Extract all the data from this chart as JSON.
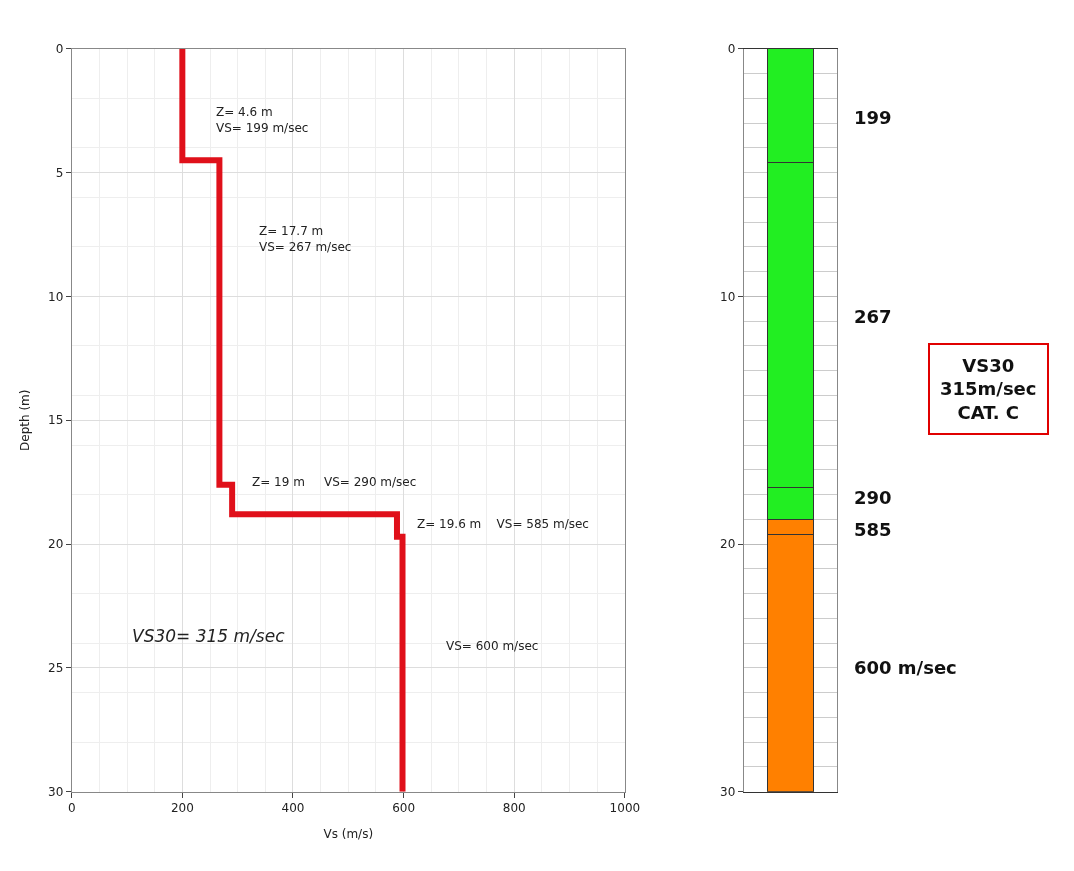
{
  "chart_data": [
    {
      "type": "line",
      "xlabel": "Vs (m/s)",
      "ylabel": "Depth (m)",
      "x": [
        200,
        200,
        267,
        267,
        290,
        290,
        588,
        588,
        598,
        598
      ],
      "series": [
        {
          "color": "#e0101a",
          "values": [
            0,
            4.5,
            4.5,
            17.6,
            17.6,
            18.8,
            18.8,
            19.7,
            19.7,
            30
          ]
        }
      ],
      "xlim": [
        0,
        1000
      ],
      "xticks": [
        0,
        200,
        400,
        600,
        800,
        1000
      ],
      "ylim": [
        30,
        0
      ],
      "yticks": [
        0,
        5,
        10,
        15,
        20,
        25,
        30
      ],
      "grid": true,
      "annotations": [
        "Z= 4.6 m\nVS= 199 m/sec",
        "Z= 17.7 m\nVS= 267 m/sec",
        "Z= 19 m     VS= 290 m/sec",
        "Z= 19.6 m    VS= 585 m/sec",
        "VS= 600 m/sec",
        "VS30= 315 m/sec"
      ]
    },
    {
      "type": "bar",
      "stacked": true,
      "categories": [
        null
      ],
      "series": [
        {
          "color": "#22ee22",
          "values": [
            4.6
          ]
        },
        {
          "color": "#22ee22",
          "values": [
            13.1
          ]
        },
        {
          "color": "#22ee22",
          "values": [
            1.3
          ]
        },
        {
          "color": "#ff8000",
          "values": [
            0.6
          ]
        },
        {
          "color": "#ff8000",
          "values": [
            10.4
          ]
        }
      ],
      "ylim": [
        30,
        0
      ],
      "yticks": [
        0,
        10,
        20,
        30
      ],
      "grid": "y",
      "annotations": [
        "199",
        "267",
        "290",
        "585",
        "600 m/sec",
        "VS30\n315m/sec\nCAT. C"
      ]
    }
  ]
}
